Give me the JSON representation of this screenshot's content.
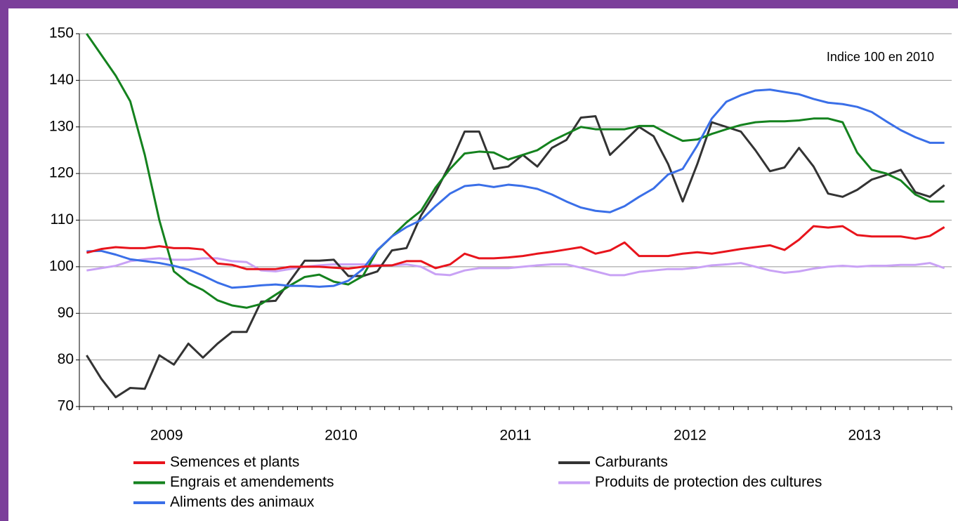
{
  "chart_data": {
    "type": "line",
    "annotation": "Indice 100 en 2010",
    "categories": [
      "2009",
      null,
      null,
      null,
      null,
      null,
      null,
      null,
      null,
      null,
      null,
      null,
      "2010",
      null,
      null,
      null,
      null,
      null,
      null,
      null,
      null,
      null,
      null,
      null,
      "2011",
      null,
      null,
      null,
      null,
      null,
      null,
      null,
      null,
      null,
      null,
      null,
      "2012",
      null,
      null,
      null,
      null,
      null,
      null,
      null,
      null,
      null,
      null,
      null,
      "2013",
      null,
      null,
      null,
      null,
      null,
      null,
      null,
      null,
      null,
      null,
      null
    ],
    "ylim": [
      70,
      150
    ],
    "yticks": [
      70,
      80,
      90,
      100,
      110,
      120,
      130,
      140,
      150
    ],
    "grid": true,
    "legend": "bottom",
    "series": [
      {
        "name": "Semences et plants",
        "color": "#e8141c",
        "values": [
          103,
          103.8,
          104.2,
          104,
          104,
          104.4,
          104,
          104,
          103.7,
          100.7,
          100.4,
          99.5,
          99.5,
          99.5,
          100,
          100,
          100,
          99.8,
          99.6,
          100,
          100.2,
          100.3,
          101.2,
          101.2,
          99.7,
          100.5,
          102.8,
          101.8,
          101.8,
          102,
          102.3,
          102.8,
          103.2,
          103.7,
          104.2,
          102.8,
          103.5,
          105.2,
          102.3,
          102.3,
          102.3,
          102.8,
          103.1,
          102.8,
          103.3,
          103.8,
          104.2,
          104.6,
          103.6,
          105.8,
          108.7,
          108.4,
          108.7,
          106.8,
          106.5,
          106.5,
          106.5,
          106,
          106.6,
          108.5
        ]
      },
      {
        "name": "Carburants",
        "color": "#333333",
        "values": [
          81,
          76,
          72,
          74,
          73.8,
          81,
          79,
          83.5,
          80.5,
          83.5,
          86,
          86,
          92.5,
          92.7,
          97,
          101.3,
          101.3,
          101.5,
          98,
          98,
          99,
          103.5,
          104,
          111,
          116,
          122,
          129,
          129,
          121,
          121.5,
          124,
          121.5,
          125.5,
          127.2,
          132,
          132.3,
          124,
          127,
          130,
          128,
          122,
          114,
          122,
          131,
          130,
          129,
          125,
          120.5,
          121.3,
          125.5,
          121.5,
          115.7,
          115,
          116.5,
          118.7,
          119.7,
          120.8,
          116,
          115,
          117.5
        ]
      },
      {
        "name": "Engrais et amendements",
        "color": "#14821e",
        "values": [
          150,
          145.5,
          141,
          135.5,
          124,
          110,
          99,
          96.5,
          95,
          92.8,
          91.7,
          91.2,
          92,
          94,
          96,
          97.8,
          98.3,
          96.8,
          96.2,
          98,
          103.5,
          106.5,
          109.5,
          112,
          117,
          121,
          124.3,
          124.7,
          124.5,
          123,
          124,
          125,
          127,
          128.5,
          130,
          129.5,
          129.5,
          129.5,
          130.2,
          130.2,
          128.5,
          127,
          127.3,
          128.5,
          129.5,
          130.4,
          131,
          131.2,
          131.2,
          131.4,
          131.8,
          131.8,
          131,
          124.5,
          120.8,
          120,
          118.5,
          115.5,
          114,
          114
        ]
      },
      {
        "name": "Produits de protection des cultures",
        "color": "#c9a2f5",
        "values": [
          99.2,
          99.7,
          100.2,
          101.2,
          101.6,
          101.8,
          101.5,
          101.5,
          101.8,
          101.8,
          101.2,
          101,
          99.2,
          99,
          99.5,
          100,
          100.3,
          100.5,
          100.5,
          100.5,
          100.4,
          100.3,
          100.5,
          100,
          98.4,
          98.2,
          99.2,
          99.7,
          99.7,
          99.7,
          100,
          100.3,
          100.5,
          100.5,
          99.8,
          99,
          98.2,
          98.2,
          98.9,
          99.2,
          99.5,
          99.5,
          99.8,
          100.3,
          100.5,
          100.8,
          100,
          99.2,
          98.7,
          99,
          99.6,
          100,
          100.2,
          100,
          100.2,
          100.2,
          100.4,
          100.4,
          100.8,
          99.7
        ]
      },
      {
        "name": "Aliments des animaux",
        "color": "#3a6fe8",
        "values": [
          103.3,
          103.4,
          102.6,
          101.6,
          101.2,
          100.8,
          100.2,
          99.4,
          98.1,
          96.6,
          95.5,
          95.7,
          96,
          96.2,
          95.9,
          95.9,
          95.7,
          95.9,
          97,
          99.5,
          103.6,
          106.5,
          108.5,
          110,
          113,
          115.7,
          117.3,
          117.6,
          117.1,
          117.6,
          117.3,
          116.7,
          115.5,
          114,
          112.7,
          112,
          111.7,
          113,
          115,
          116.8,
          119.8,
          121,
          126,
          131.8,
          135.4,
          136.8,
          137.8,
          138,
          137.5,
          137,
          136,
          135.2,
          134.9,
          134.3,
          133.2,
          131.2,
          129.3,
          127.8,
          126.6,
          126.6
        ]
      }
    ]
  }
}
